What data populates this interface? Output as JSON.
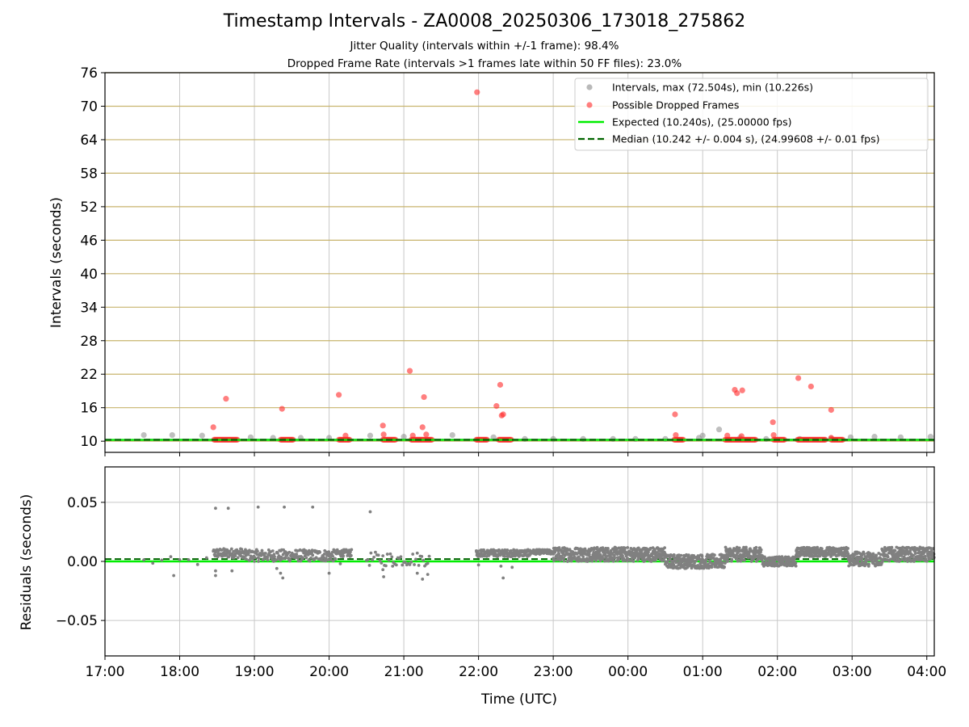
{
  "chart_data": [
    {
      "type": "scatter",
      "title": "Timestamp Intervals - ZA0008_20250306_173018_275862",
      "subtitle_lines": [
        "Jitter Quality (intervals within +/-1 frame): 98.4%",
        "Dropped Frame Rate (intervals >1 frames late within 50 FF files): 23.0%"
      ],
      "ylabel": "Intervals (seconds)",
      "xlim": [
        17.0,
        28.1
      ],
      "ylim": [
        8.0,
        76.0
      ],
      "yticks": [
        "10",
        "16",
        "22",
        "28",
        "34",
        "40",
        "46",
        "52",
        "58",
        "64",
        "70",
        "76"
      ],
      "ytick_values": [
        10,
        16,
        22,
        28,
        34,
        40,
        46,
        52,
        58,
        64,
        70,
        76
      ],
      "grid": "on",
      "legend_position": "top-right",
      "legend": [
        "Intervals, max (72.504s), min (10.226s)",
        "Possible Dropped Frames",
        "Expected (10.240s), (25.00000 fps)",
        "Median (10.242 +/- 0.004 s), (24.99608 +/- 0.01 fps)"
      ],
      "colors": {
        "intervals": "#808080",
        "dropped": "#ff2a2a",
        "expected": "#00ee00",
        "median": "#006400",
        "grid_y": "#c8b46e",
        "grid_x": "#c8c8c8"
      },
      "expected_interval": 10.24,
      "median_interval": 10.242,
      "series": [
        {
          "name": "Intervals, max (72.504s), min (10.226s)",
          "points": [
            [
              17.52,
              11.1
            ],
            [
              17.9,
              11.1
            ],
            [
              18.3,
              11.0
            ],
            [
              18.95,
              10.7
            ],
            [
              19.25,
              10.6
            ],
            [
              19.62,
              10.6
            ],
            [
              20.0,
              10.6
            ],
            [
              20.55,
              11.0
            ],
            [
              21.0,
              10.8
            ],
            [
              21.65,
              11.1
            ],
            [
              22.2,
              10.7
            ],
            [
              22.62,
              10.4
            ],
            [
              23.0,
              10.4
            ],
            [
              23.4,
              10.4
            ],
            [
              23.8,
              10.4
            ],
            [
              24.1,
              10.4
            ],
            [
              24.5,
              10.4
            ],
            [
              24.95,
              10.6
            ],
            [
              25.0,
              11.0
            ],
            [
              25.22,
              12.1
            ],
            [
              25.5,
              10.6
            ],
            [
              25.85,
              10.4
            ],
            [
              26.3,
              10.4
            ],
            [
              26.72,
              10.5
            ],
            [
              26.98,
              10.7
            ],
            [
              27.3,
              10.8
            ],
            [
              27.65,
              10.7
            ],
            [
              28.05,
              10.8
            ]
          ]
        },
        {
          "name": "Possible Dropped Frames",
          "points": [
            [
              18.45,
              12.5
            ],
            [
              18.62,
              17.6
            ],
            [
              19.37,
              15.8
            ],
            [
              20.13,
              18.3
            ],
            [
              20.22,
              11.0
            ],
            [
              20.72,
              12.8
            ],
            [
              20.73,
              11.2
            ],
            [
              21.08,
              22.6
            ],
            [
              21.12,
              11.0
            ],
            [
              21.25,
              12.5
            ],
            [
              21.27,
              17.9
            ],
            [
              21.3,
              11.2
            ],
            [
              21.98,
              72.5
            ],
            [
              22.24,
              16.3
            ],
            [
              22.29,
              20.1
            ],
            [
              22.31,
              14.6
            ],
            [
              22.33,
              14.8
            ],
            [
              24.63,
              14.8
            ],
            [
              24.64,
              11.1
            ],
            [
              25.33,
              11.0
            ],
            [
              25.43,
              19.2
            ],
            [
              25.46,
              18.6
            ],
            [
              25.53,
              19.1
            ],
            [
              25.52,
              10.9
            ],
            [
              25.94,
              13.4
            ],
            [
              25.95,
              11.1
            ],
            [
              26.28,
              21.3
            ],
            [
              26.45,
              19.8
            ],
            [
              26.72,
              15.6
            ],
            [
              26.72,
              10.6
            ]
          ]
        }
      ],
      "dropped_clusters_x": [
        [
          18.46,
          18.78
        ],
        [
          19.35,
          19.53
        ],
        [
          20.13,
          20.28
        ],
        [
          20.72,
          20.9
        ],
        [
          21.1,
          21.38
        ],
        [
          21.97,
          22.12
        ],
        [
          22.27,
          22.45
        ],
        [
          24.62,
          24.75
        ],
        [
          25.3,
          25.72
        ],
        [
          25.95,
          26.1
        ],
        [
          26.27,
          26.65
        ],
        [
          26.72,
          26.88
        ]
      ],
      "interval_band_x": [
        17.52,
        28.1
      ],
      "interval_band_y": [
        10.2,
        10.45
      ]
    },
    {
      "type": "scatter",
      "xlabel": "Time (UTC)",
      "ylabel": "Residuals (seconds)",
      "xlim": [
        17.0,
        28.1
      ],
      "ylim": [
        -0.08,
        0.08
      ],
      "yticks": [
        "0.05",
        "0.00",
        "−0.05"
      ],
      "ytick_values": [
        0.05,
        0.0,
        -0.05
      ],
      "xticks": [
        "17:00",
        "18:00",
        "19:00",
        "20:00",
        "21:00",
        "22:00",
        "23:00",
        "00:00",
        "01:00",
        "02:00",
        "03:00",
        "04:00"
      ],
      "xtick_values": [
        17,
        18,
        19,
        20,
        21,
        22,
        23,
        24,
        25,
        26,
        27,
        28
      ],
      "grid": "on",
      "expected_residual": 0.0,
      "median_residual": 0.002,
      "series": [
        {
          "name": "Residuals",
          "outliers": [
            [
              18.48,
              0.045
            ],
            [
              18.65,
              0.045
            ],
            [
              19.05,
              0.046
            ],
            [
              19.4,
              0.046
            ],
            [
              19.78,
              0.046
            ],
            [
              20.55,
              0.042
            ],
            [
              17.92,
              -0.012
            ]
          ],
          "bands": [
            {
              "x": [
                17.52,
                18.4
              ],
              "center": 0.0,
              "spread": 0.004,
              "step": 0.12
            },
            {
              "x": [
                18.45,
                18.85
              ],
              "center": 0.007,
              "spread": 0.004,
              "step": 0.005
            },
            {
              "x": [
                18.85,
                20.1
              ],
              "center": 0.005,
              "spread": 0.005,
              "step": 0.006
            },
            {
              "x": [
                20.1,
                20.3
              ],
              "center": 0.007,
              "spread": 0.003,
              "step": 0.005
            },
            {
              "x": [
                20.5,
                21.35
              ],
              "center": 0.002,
              "spread": 0.006,
              "step": 0.02
            },
            {
              "x": [
                21.97,
                22.7
              ],
              "center": 0.007,
              "spread": 0.003,
              "step": 0.004
            },
            {
              "x": [
                22.7,
                23.0
              ],
              "center": 0.008,
              "spread": 0.002,
              "step": 0.004
            },
            {
              "x": [
                23.0,
                24.5
              ],
              "center": 0.006,
              "spread": 0.006,
              "step": 0.0032
            },
            {
              "x": [
                24.5,
                25.3
              ],
              "center": 0.0,
              "spread": 0.006,
              "step": 0.0032
            },
            {
              "x": [
                25.3,
                25.8
              ],
              "center": 0.006,
              "spread": 0.006,
              "step": 0.0032
            },
            {
              "x": [
                25.8,
                26.25
              ],
              "center": 0.0,
              "spread": 0.004,
              "step": 0.0032
            },
            {
              "x": [
                26.25,
                26.95
              ],
              "center": 0.008,
              "spread": 0.004,
              "step": 0.0032
            },
            {
              "x": [
                26.95,
                27.4
              ],
              "center": 0.002,
              "spread": 0.006,
              "step": 0.0032
            },
            {
              "x": [
                27.4,
                28.1
              ],
              "center": 0.006,
              "spread": 0.006,
              "step": 0.0032
            }
          ],
          "negatives": [
            [
              18.48,
              -0.008
            ],
            [
              18.48,
              -0.012
            ],
            [
              18.7,
              -0.008
            ],
            [
              19.3,
              -0.006
            ],
            [
              19.35,
              -0.01
            ],
            [
              19.38,
              -0.014
            ],
            [
              20.0,
              -0.01
            ],
            [
              20.15,
              -0.002
            ],
            [
              20.72,
              -0.007
            ],
            [
              20.73,
              -0.013
            ],
            [
              20.85,
              -0.004
            ],
            [
              21.18,
              -0.01
            ],
            [
              21.25,
              -0.015
            ],
            [
              21.32,
              -0.011
            ],
            [
              22.0,
              -0.003
            ],
            [
              22.3,
              -0.004
            ],
            [
              22.33,
              -0.014
            ],
            [
              22.45,
              -0.005
            ]
          ]
        }
      ]
    }
  ]
}
